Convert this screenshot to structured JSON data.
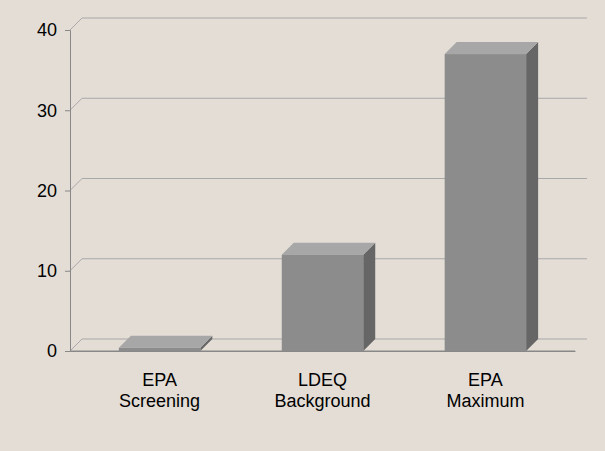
{
  "chart_data": {
    "type": "bar",
    "categories": [
      "EPA Screening",
      "LDEQ Background",
      "EPA Maximum"
    ],
    "values": [
      0.4,
      12,
      37
    ],
    "color": "#8c8c8c",
    "ylim": [
      0,
      40
    ],
    "yticks": [
      0,
      10,
      20,
      30,
      40
    ],
    "grid": true
  }
}
